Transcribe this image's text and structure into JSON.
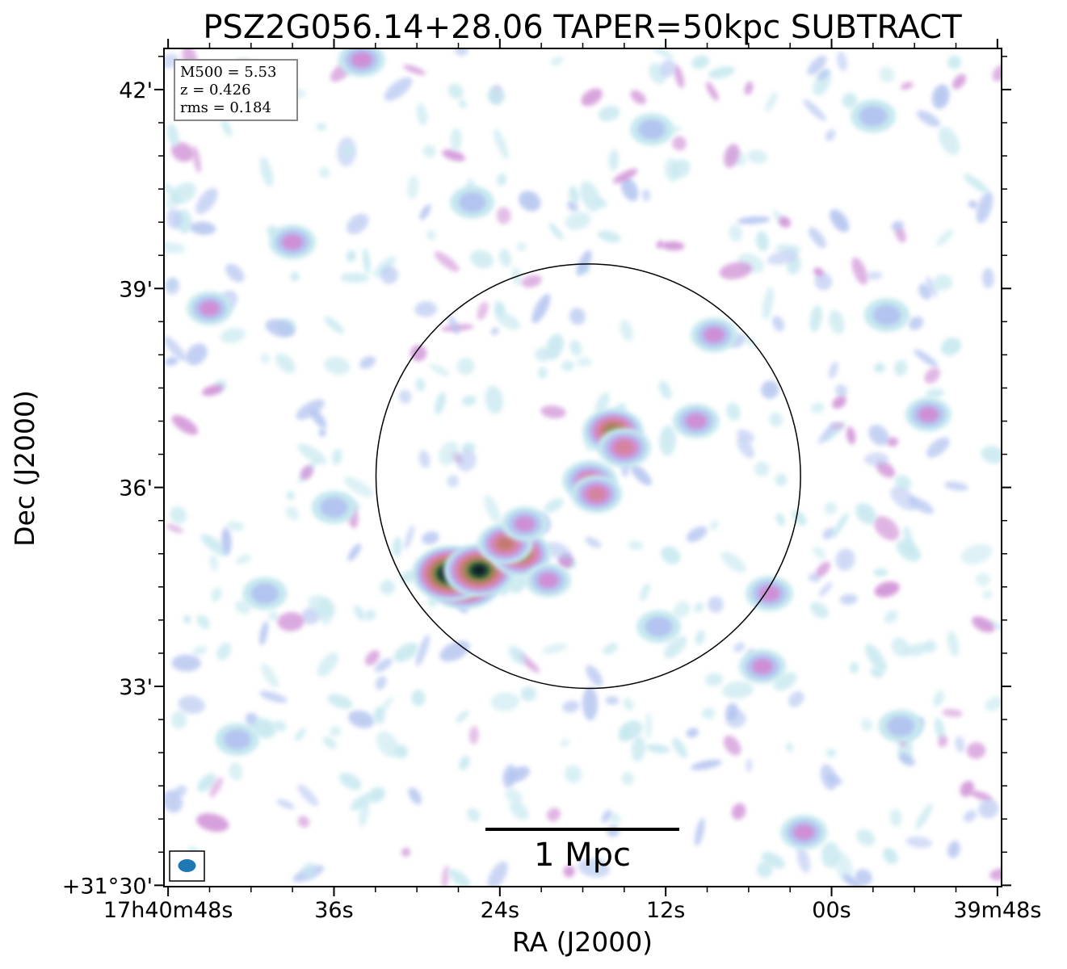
{
  "chart_data": {
    "type": "heatmap",
    "title": "PSZ2G056.14+28.06 TAPER=50kpc SUBTRACT",
    "xlabel": "RA (J2000)",
    "ylabel": "Dec (J2000)",
    "x_ticks": [
      {
        "label": "17h40m48s",
        "ra_sec": 48
      },
      {
        "label": "36s",
        "ra_sec": 36
      },
      {
        "label": "24s",
        "ra_sec": 24
      },
      {
        "label": "12s",
        "ra_sec": 12
      },
      {
        "label": "00s",
        "ra_sec": 0
      },
      {
        "label": "39m48s",
        "ra_sec": -12
      }
    ],
    "y_ticks": [
      {
        "label": "42'",
        "dec_arcmin": 42
      },
      {
        "label": "39'",
        "dec_arcmin": 39
      },
      {
        "label": "36'",
        "dec_arcmin": 36
      },
      {
        "label": "33'",
        "dec_arcmin": 33
      },
      {
        "label": "+31°30'",
        "dec_arcmin": 30
      }
    ],
    "x_range_ra_sec": [
      48.3,
      -12.3
    ],
    "y_range_dec_arcmin": [
      29.98,
      42.62
    ],
    "info_box": [
      "M500 = 5.53",
      "z = 0.426",
      "rms = 0.184"
    ],
    "scale_bar_label": "1 Mpc",
    "circle": {
      "center_ra_sec": 17.6,
      "center_dec_arcmin": 36.17,
      "radius_arcmin": 3.2
    },
    "sources": [
      {
        "ra_sec": 26.6,
        "dec_arcmin": 34.6,
        "level": 1.0
      },
      {
        "ra_sec": 27.6,
        "dec_arcmin": 34.7,
        "level": 0.95
      },
      {
        "ra_sec": 25.5,
        "dec_arcmin": 34.75,
        "level": 0.85
      },
      {
        "ra_sec": 22.5,
        "dec_arcmin": 35.0,
        "level": 0.62
      },
      {
        "ra_sec": 23.6,
        "dec_arcmin": 35.15,
        "level": 0.5
      },
      {
        "ra_sec": 15.8,
        "dec_arcmin": 36.85,
        "level": 0.62
      },
      {
        "ra_sec": 15.0,
        "dec_arcmin": 36.6,
        "level": 0.45
      },
      {
        "ra_sec": 17.5,
        "dec_arcmin": 36.1,
        "level": 0.48
      },
      {
        "ra_sec": 17.0,
        "dec_arcmin": 35.9,
        "level": 0.4
      },
      {
        "ra_sec": 22.2,
        "dec_arcmin": 35.45,
        "level": 0.3
      },
      {
        "ra_sec": 20.5,
        "dec_arcmin": 34.6,
        "level": 0.28
      },
      {
        "ra_sec": 4.5,
        "dec_arcmin": 34.4,
        "level": 0.32
      },
      {
        "ra_sec": 9.8,
        "dec_arcmin": 37.0,
        "level": 0.3
      },
      {
        "ra_sec": 8.5,
        "dec_arcmin": 38.3,
        "level": 0.3
      },
      {
        "ra_sec": 45.0,
        "dec_arcmin": 38.7,
        "level": 0.28
      },
      {
        "ra_sec": 39.0,
        "dec_arcmin": 39.7,
        "level": 0.3
      },
      {
        "ra_sec": 34.0,
        "dec_arcmin": 42.45,
        "level": 0.3
      },
      {
        "ra_sec": 5.0,
        "dec_arcmin": 33.3,
        "level": 0.3
      },
      {
        "ra_sec": 2.0,
        "dec_arcmin": 30.8,
        "level": 0.3
      },
      {
        "ra_sec": -7.0,
        "dec_arcmin": 37.1,
        "level": 0.28
      },
      {
        "ra_sec": -4.0,
        "dec_arcmin": 38.6,
        "level": 0.27
      },
      {
        "ra_sec": 36.0,
        "dec_arcmin": 35.7,
        "level": 0.26
      },
      {
        "ra_sec": 41.0,
        "dec_arcmin": 34.4,
        "level": 0.25
      },
      {
        "ra_sec": 12.5,
        "dec_arcmin": 33.9,
        "level": 0.24
      },
      {
        "ra_sec": -5.0,
        "dec_arcmin": 32.4,
        "level": 0.25
      },
      {
        "ra_sec": -3.0,
        "dec_arcmin": 41.6,
        "level": 0.26
      },
      {
        "ra_sec": 26.0,
        "dec_arcmin": 40.3,
        "level": 0.24
      },
      {
        "ra_sec": 13.0,
        "dec_arcmin": 41.4,
        "level": 0.23
      },
      {
        "ra_sec": 43.0,
        "dec_arcmin": 32.2,
        "level": 0.24
      }
    ],
    "colormap": [
      "#ffffff",
      "#c6e8ef",
      "#b4c4f0",
      "#cf8fd6",
      "#d6839e",
      "#c27a70",
      "#8c8a48",
      "#2a5a3a",
      "#0d1f26",
      "#000000"
    ],
    "beam_color": "#1f77b4",
    "circle_color": "#000000",
    "grid": false
  }
}
